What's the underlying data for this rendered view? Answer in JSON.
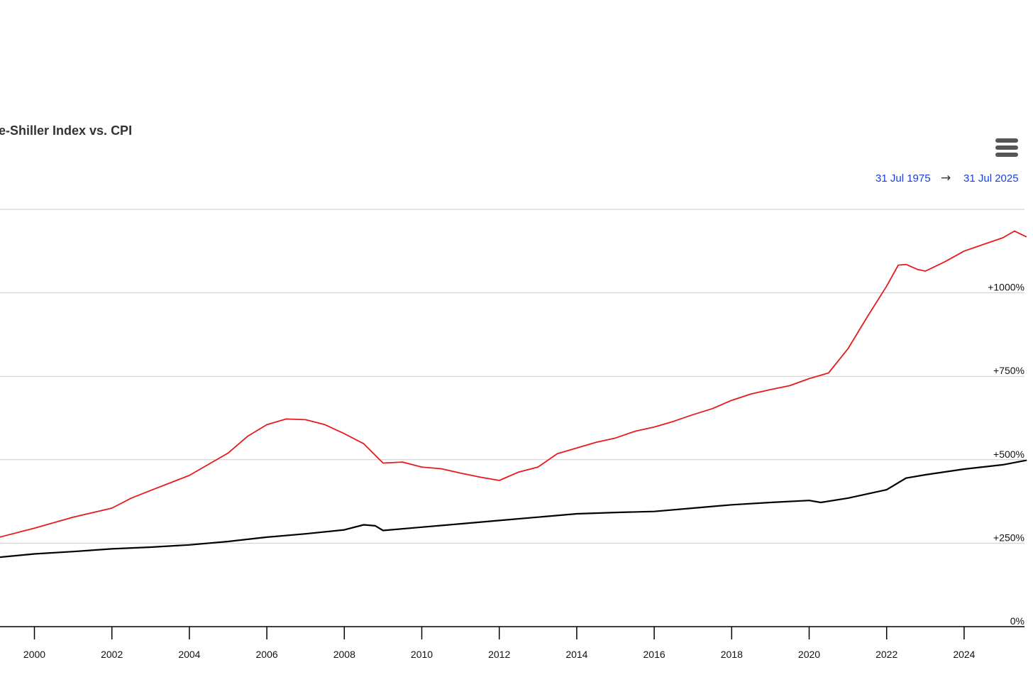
{
  "header": {
    "title": "e-Shiller Index vs. CPI",
    "menu_icon": "hamburger-menu-icon",
    "range_start": "31 Jul 1975",
    "range_arrow": "→",
    "range_end": "31 Jul 2025"
  },
  "colors": {
    "case_shiller": "#e8191b",
    "cpi": "#000000",
    "gridline": "#cccccc",
    "range_link": "#1a3fd8"
  },
  "chart_data": {
    "type": "line",
    "title": "e-Shiller Index vs. CPI",
    "xlabel": "",
    "ylabel": "",
    "xlim": [
      1999.1,
      2025.6
    ],
    "ylim": [
      0,
      1260
    ],
    "grid": true,
    "y_axis_side": "right",
    "x_tick_labels": [
      "2000",
      "2002",
      "2004",
      "2006",
      "2008",
      "2010",
      "2012",
      "2014",
      "2016",
      "2018",
      "2020",
      "2022",
      "2024"
    ],
    "y_tick_labels": [
      {
        "value": 0,
        "label": "0%"
      },
      {
        "value": 250,
        "label": "+250%"
      },
      {
        "value": 500,
        "label": "+500%"
      },
      {
        "value": 750,
        "label": "+750%"
      },
      {
        "value": 1000,
        "label": "+1000%"
      },
      {
        "value": 1250,
        "label": ""
      }
    ],
    "series": [
      {
        "color": "#e8191b",
        "x": [
          1999.1,
          2000.0,
          2001.0,
          2002.0,
          2002.5,
          2003.0,
          2004.0,
          2005.0,
          2005.5,
          2006.0,
          2006.5,
          2007.0,
          2007.5,
          2008.0,
          2008.5,
          2009.0,
          2009.5,
          2010.0,
          2010.5,
          2011.0,
          2011.5,
          2012.0,
          2012.5,
          2013.0,
          2013.5,
          2014.0,
          2014.5,
          2015.0,
          2015.5,
          2016.0,
          2016.5,
          2017.0,
          2017.5,
          2018.0,
          2018.5,
          2019.0,
          2019.5,
          2020.0,
          2020.5,
          2021.0,
          2021.5,
          2022.0,
          2022.3,
          2022.5,
          2022.8,
          2023.0,
          2023.5,
          2024.0,
          2024.5,
          2025.0,
          2025.3,
          2025.6
        ],
        "y": [
          268,
          295,
          328,
          355,
          385,
          408,
          453,
          520,
          570,
          605,
          622,
          620,
          605,
          578,
          548,
          490,
          493,
          478,
          473,
          460,
          448,
          438,
          463,
          478,
          518,
          535,
          552,
          565,
          585,
          598,
          615,
          635,
          653,
          678,
          697,
          710,
          722,
          743,
          760,
          832,
          928,
          1020,
          1083,
          1085,
          1070,
          1065,
          1093,
          1125,
          1145,
          1165,
          1185,
          1168
        ]
      },
      {
        "color": "#000000",
        "x": [
          1999.1,
          2000.0,
          2001.0,
          2002.0,
          2003.0,
          2004.0,
          2005.0,
          2006.0,
          2007.0,
          2008.0,
          2008.5,
          2008.8,
          2009.0,
          2010.0,
          2011.0,
          2012.0,
          2013.0,
          2014.0,
          2015.0,
          2016.0,
          2017.0,
          2018.0,
          2019.0,
          2020.0,
          2020.3,
          2021.0,
          2022.0,
          2022.5,
          2023.0,
          2024.0,
          2025.0,
          2025.6
        ],
        "y": [
          208,
          218,
          225,
          233,
          238,
          245,
          255,
          268,
          278,
          290,
          305,
          302,
          288,
          298,
          308,
          318,
          328,
          338,
          342,
          345,
          355,
          365,
          372,
          378,
          372,
          385,
          410,
          445,
          455,
          472,
          485,
          498
        ]
      }
    ]
  }
}
